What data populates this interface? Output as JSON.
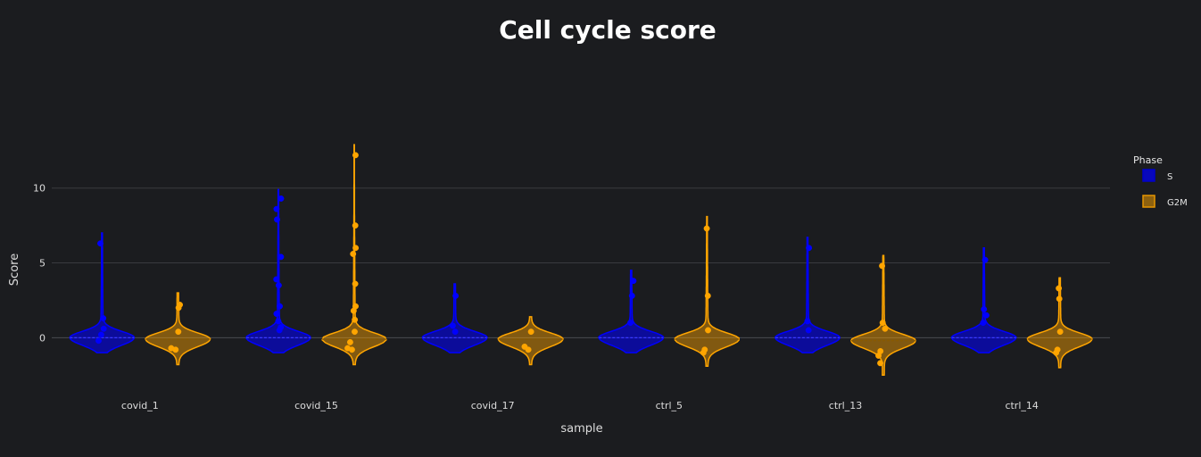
{
  "chart_data": {
    "type": "violin",
    "title": "Cell cycle score",
    "xlabel": "sample",
    "ylabel": "Score",
    "ylim": [
      -3.2,
      17.5
    ],
    "yticks": [
      0,
      5,
      10
    ],
    "grid": true,
    "legend": {
      "title": "Phase",
      "placement": "right"
    },
    "categories": [
      "covid_1",
      "covid_15",
      "covid_17",
      "ctrl_5",
      "ctrl_13",
      "ctrl_14"
    ],
    "series": [
      {
        "name": "S",
        "color": "#0000ff",
        "violins": [
          {
            "min": -1.0,
            "max": 7.0,
            "median": 0.0,
            "q1": -0.3,
            "q3": 0.3,
            "width": 1.0,
            "points": [
              6.3,
              1.3,
              0.6,
              0.2,
              -0.2
            ]
          },
          {
            "min": -1.0,
            "max": 9.9,
            "median": 0.0,
            "q1": -0.3,
            "q3": 0.4,
            "width": 1.0,
            "points": [
              9.3,
              8.6,
              7.9,
              5.4,
              3.9,
              3.5,
              2.1,
              1.6,
              1.1,
              0.7,
              0.5
            ]
          },
          {
            "min": -1.0,
            "max": 3.6,
            "median": 0.0,
            "q1": -0.3,
            "q3": 0.3,
            "width": 1.0,
            "points": [
              2.8,
              0.8,
              0.4
            ]
          },
          {
            "min": -1.0,
            "max": 4.5,
            "median": 0.0,
            "q1": -0.3,
            "q3": 0.3,
            "width": 1.0,
            "points": [
              3.8,
              2.8,
              1.0
            ]
          },
          {
            "min": -1.0,
            "max": 6.7,
            "median": 0.0,
            "q1": -0.3,
            "q3": 0.3,
            "width": 1.0,
            "points": [
              6.0,
              1.1,
              0.5
            ]
          },
          {
            "min": -1.0,
            "max": 6.0,
            "median": 0.0,
            "q1": -0.3,
            "q3": 0.3,
            "width": 1.0,
            "points": [
              5.2,
              1.9,
              1.5,
              1.0
            ]
          }
        ]
      },
      {
        "name": "G2M",
        "color": "#ffa500",
        "violins": [
          {
            "min": -1.8,
            "max": 3.0,
            "median": -0.1,
            "q1": -0.5,
            "q3": 0.2,
            "width": 1.0,
            "points": [
              2.2,
              2.0,
              0.4,
              -0.7,
              -0.8
            ]
          },
          {
            "min": -1.8,
            "max": 12.9,
            "median": -0.1,
            "q1": -0.5,
            "q3": 0.3,
            "width": 1.0,
            "points": [
              12.2,
              7.5,
              6.0,
              5.6,
              3.6,
              2.1,
              1.8,
              1.2,
              0.4,
              -0.3,
              -0.7,
              -0.8
            ]
          },
          {
            "min": -1.8,
            "max": 1.4,
            "median": -0.1,
            "q1": -0.5,
            "q3": 0.2,
            "width": 1.0,
            "points": [
              0.4,
              -0.6,
              -0.8
            ]
          },
          {
            "min": -1.9,
            "max": 8.1,
            "median": -0.1,
            "q1": -0.5,
            "q3": 0.2,
            "width": 1.0,
            "points": [
              7.3,
              2.8,
              0.5,
              -0.8,
              -1.0
            ]
          },
          {
            "min": -2.5,
            "max": 5.5,
            "median": -0.2,
            "q1": -0.6,
            "q3": 0.1,
            "width": 1.0,
            "points": [
              4.8,
              1.0,
              0.6,
              -0.9,
              -1.2,
              -1.7
            ]
          },
          {
            "min": -2.0,
            "max": 4.0,
            "median": -0.1,
            "q1": -0.5,
            "q3": 0.2,
            "width": 1.0,
            "points": [
              3.3,
              2.6,
              0.4,
              -0.8,
              -1.0
            ]
          }
        ]
      }
    ]
  }
}
